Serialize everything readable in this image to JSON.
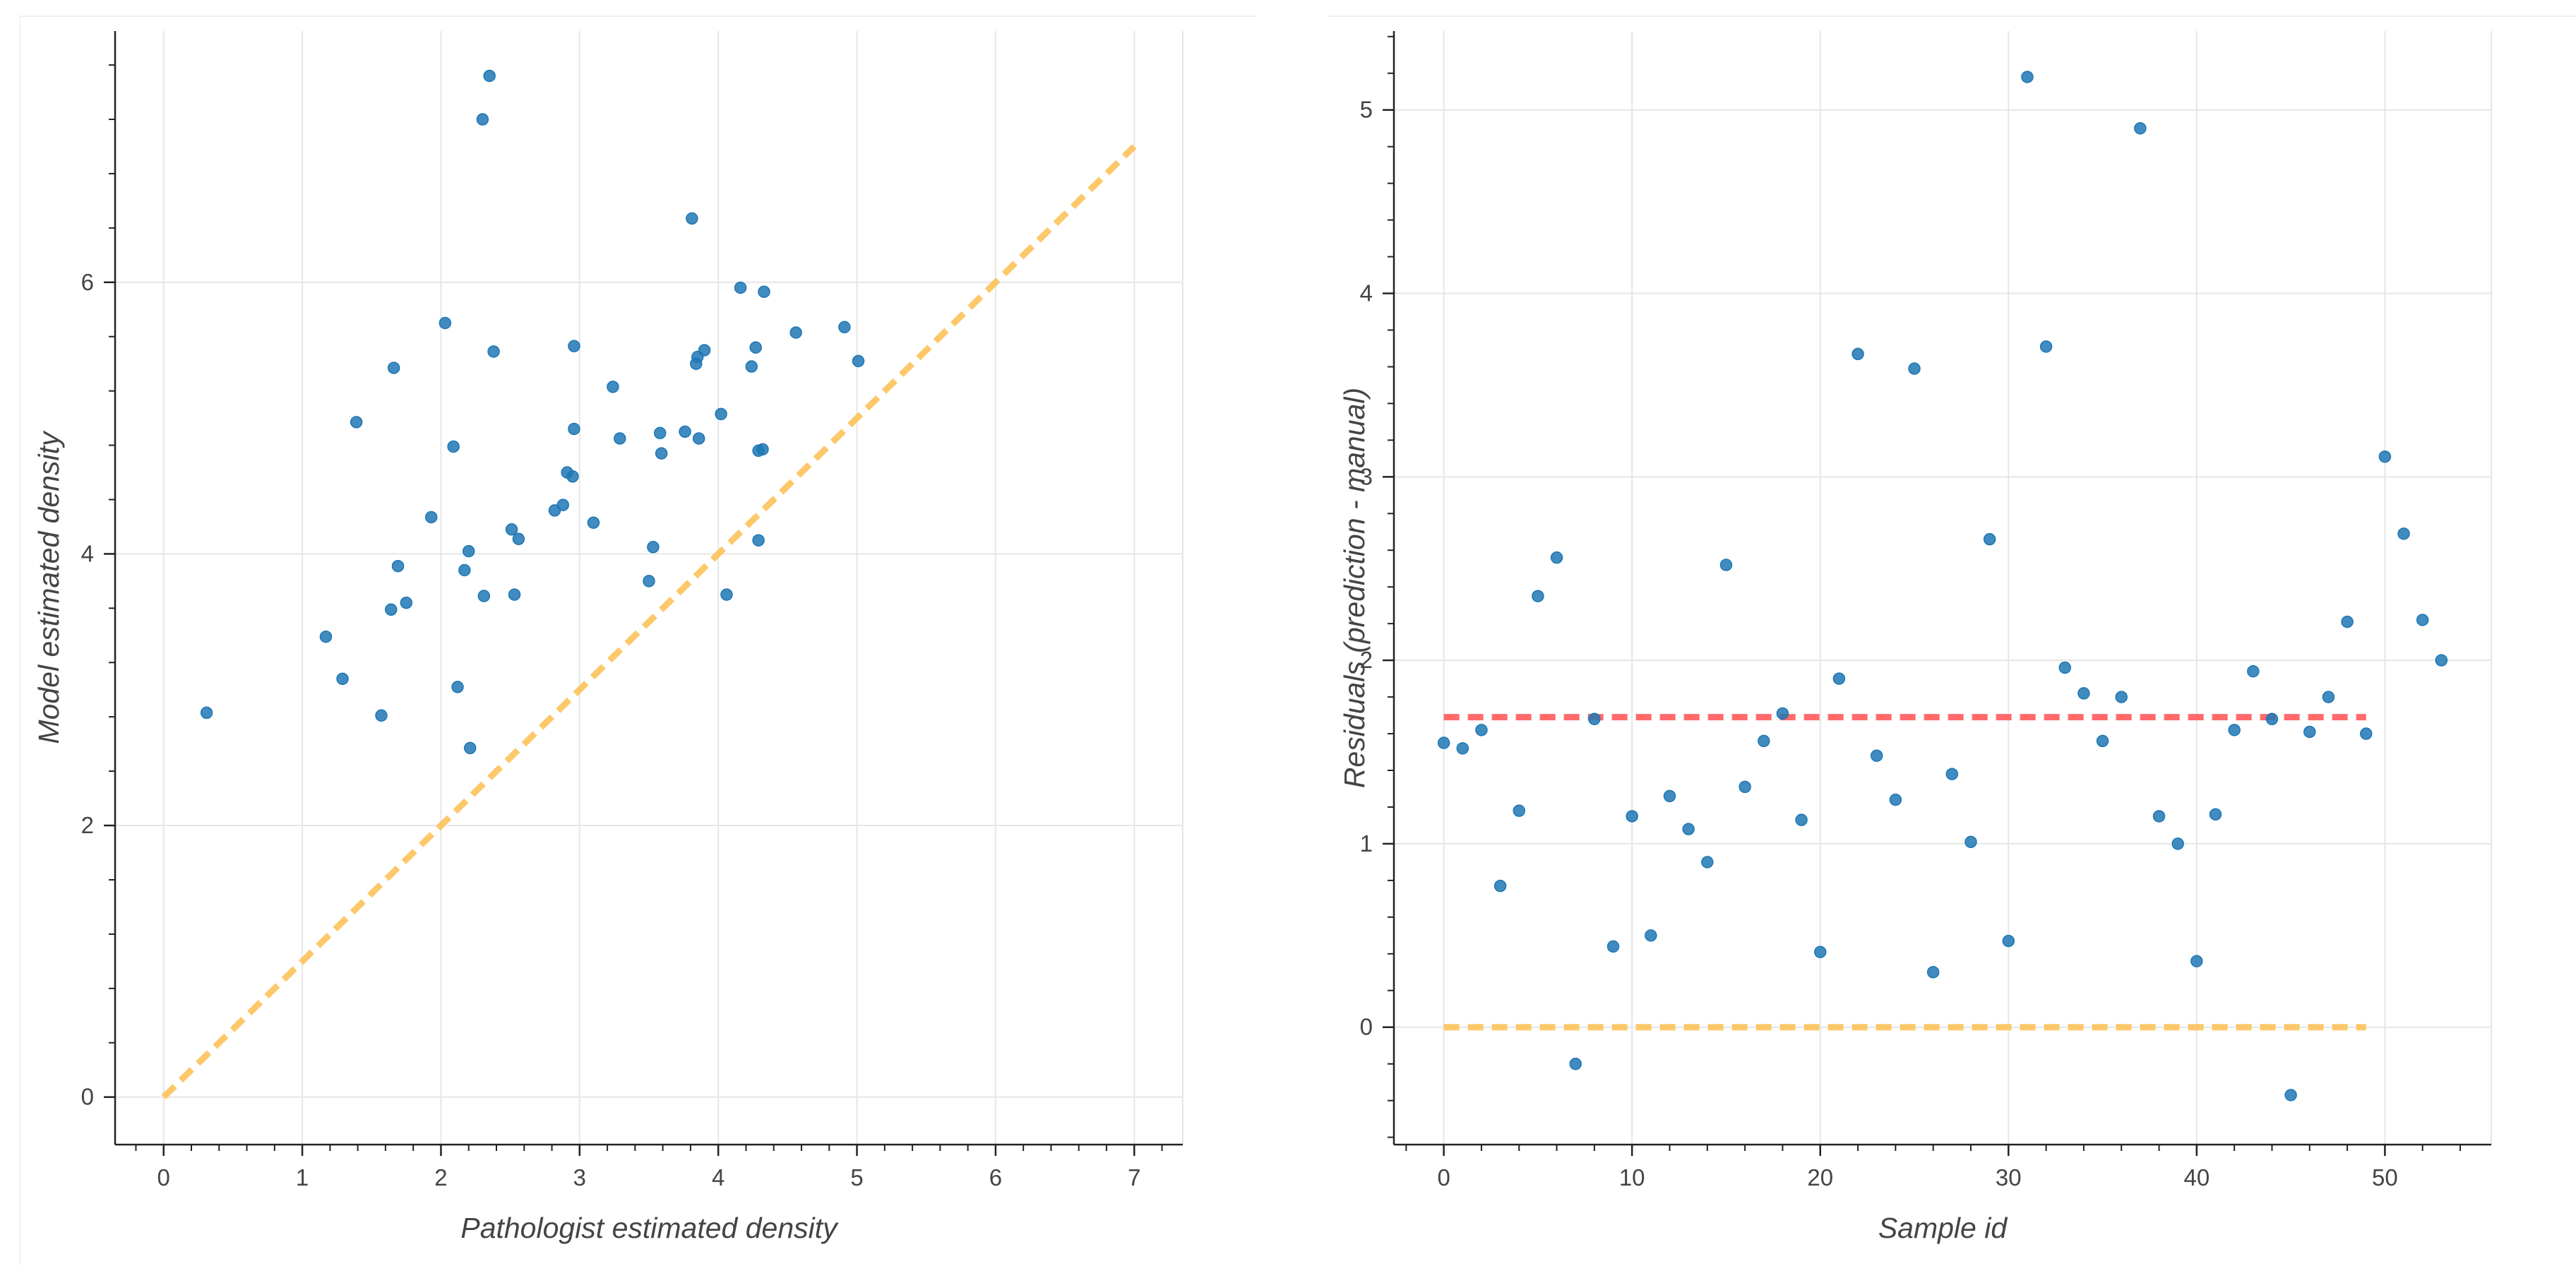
{
  "chart_data": [
    {
      "type": "scatter",
      "title": "",
      "xlabel": "Pathologist estimated density",
      "ylabel": "Model estimated density",
      "xlim": [
        -0.35,
        7.35
      ],
      "ylim": [
        -0.35,
        7.85
      ],
      "x_ticks": [
        0,
        1,
        2,
        3,
        4,
        5,
        6,
        7
      ],
      "y_ticks": [
        0,
        2,
        4,
        6
      ],
      "grid": true,
      "colors": {
        "points": "#1f77b4",
        "reference_line": "#fdc35a",
        "grid": "#e6e6e6",
        "axis": "#222222"
      },
      "reference_line": {
        "name": "y = x",
        "x": [
          0,
          7
        ],
        "y": [
          0,
          7
        ],
        "style": "dashed"
      },
      "points": [
        {
          "x": 0.31,
          "y": 2.83
        },
        {
          "x": 1.17,
          "y": 3.39
        },
        {
          "x": 1.29,
          "y": 3.08
        },
        {
          "x": 1.39,
          "y": 4.97
        },
        {
          "x": 1.57,
          "y": 2.81
        },
        {
          "x": 1.64,
          "y": 3.59
        },
        {
          "x": 1.66,
          "y": 5.37
        },
        {
          "x": 1.69,
          "y": 3.91
        },
        {
          "x": 1.75,
          "y": 3.64
        },
        {
          "x": 1.93,
          "y": 4.27
        },
        {
          "x": 2.03,
          "y": 5.7
        },
        {
          "x": 2.09,
          "y": 4.79
        },
        {
          "x": 2.12,
          "y": 3.02
        },
        {
          "x": 2.17,
          "y": 3.88
        },
        {
          "x": 2.2,
          "y": 4.02
        },
        {
          "x": 2.21,
          "y": 2.57
        },
        {
          "x": 2.3,
          "y": 7.2
        },
        {
          "x": 2.31,
          "y": 3.69
        },
        {
          "x": 2.35,
          "y": 7.52
        },
        {
          "x": 2.38,
          "y": 5.49
        },
        {
          "x": 2.51,
          "y": 4.18
        },
        {
          "x": 2.53,
          "y": 3.7
        },
        {
          "x": 2.56,
          "y": 4.11
        },
        {
          "x": 2.82,
          "y": 4.32
        },
        {
          "x": 2.88,
          "y": 4.36
        },
        {
          "x": 2.91,
          "y": 4.6
        },
        {
          "x": 2.95,
          "y": 4.57
        },
        {
          "x": 2.96,
          "y": 5.53
        },
        {
          "x": 2.96,
          "y": 4.92
        },
        {
          "x": 3.1,
          "y": 4.23
        },
        {
          "x": 3.24,
          "y": 5.23
        },
        {
          "x": 3.29,
          "y": 4.85
        },
        {
          "x": 3.5,
          "y": 3.8
        },
        {
          "x": 3.53,
          "y": 4.05
        },
        {
          "x": 3.58,
          "y": 4.89
        },
        {
          "x": 3.59,
          "y": 4.74
        },
        {
          "x": 3.76,
          "y": 4.9
        },
        {
          "x": 3.81,
          "y": 6.47
        },
        {
          "x": 3.84,
          "y": 5.4
        },
        {
          "x": 3.85,
          "y": 5.45
        },
        {
          "x": 3.86,
          "y": 4.85
        },
        {
          "x": 3.9,
          "y": 5.5
        },
        {
          "x": 4.02,
          "y": 5.03
        },
        {
          "x": 4.06,
          "y": 3.7
        },
        {
          "x": 4.16,
          "y": 5.96
        },
        {
          "x": 4.24,
          "y": 5.38
        },
        {
          "x": 4.27,
          "y": 5.52
        },
        {
          "x": 4.29,
          "y": 4.1
        },
        {
          "x": 4.29,
          "y": 4.76
        },
        {
          "x": 4.32,
          "y": 4.77
        },
        {
          "x": 4.33,
          "y": 5.93
        },
        {
          "x": 4.56,
          "y": 5.63
        },
        {
          "x": 4.91,
          "y": 5.67
        },
        {
          "x": 5.01,
          "y": 5.42
        }
      ]
    },
    {
      "type": "scatter",
      "title": "",
      "xlabel": "Sample id",
      "ylabel": "Residuals (prediction - manual)",
      "xlim": [
        -2.65,
        55.65
      ],
      "ylim": [
        -0.64,
        5.43
      ],
      "x_ticks": [
        0,
        10,
        20,
        30,
        40,
        50
      ],
      "y_ticks": [
        0,
        1,
        2,
        3,
        4,
        5
      ],
      "grid": true,
      "colors": {
        "points": "#1f77b4",
        "zero_line": "#fdc35a",
        "mean_line": "#ff5a5a",
        "grid": "#e6e6e6",
        "axis": "#222222"
      },
      "reference_lines": [
        {
          "name": "zero",
          "x": [
            0,
            49
          ],
          "y": [
            0,
            0
          ],
          "style": "dashed"
        },
        {
          "name": "mean residual",
          "x": [
            0,
            49
          ],
          "y": [
            1.69,
            1.69
          ],
          "style": "dashed"
        }
      ],
      "points": [
        {
          "x": 0,
          "y": 1.55
        },
        {
          "x": 1,
          "y": 1.52
        },
        {
          "x": 2,
          "y": 1.62
        },
        {
          "x": 3,
          "y": 0.77
        },
        {
          "x": 4,
          "y": 1.18
        },
        {
          "x": 5,
          "y": 2.35
        },
        {
          "x": 6,
          "y": 2.56
        },
        {
          "x": 7,
          "y": -0.2
        },
        {
          "x": 8,
          "y": 1.68
        },
        {
          "x": 9,
          "y": 0.44
        },
        {
          "x": 10,
          "y": 1.15
        },
        {
          "x": 11,
          "y": 0.5
        },
        {
          "x": 12,
          "y": 1.26
        },
        {
          "x": 13,
          "y": 1.08
        },
        {
          "x": 14,
          "y": 0.9
        },
        {
          "x": 15,
          "y": 2.52
        },
        {
          "x": 16,
          "y": 1.31
        },
        {
          "x": 17,
          "y": 1.56
        },
        {
          "x": 18,
          "y": 1.71
        },
        {
          "x": 19,
          "y": 1.13
        },
        {
          "x": 20,
          "y": 0.41
        },
        {
          "x": 21,
          "y": 1.9
        },
        {
          "x": 22,
          "y": 3.67
        },
        {
          "x": 23,
          "y": 1.48
        },
        {
          "x": 24,
          "y": 1.24
        },
        {
          "x": 25,
          "y": 3.59
        },
        {
          "x": 26,
          "y": 0.3
        },
        {
          "x": 27,
          "y": 1.38
        },
        {
          "x": 28,
          "y": 1.01
        },
        {
          "x": 29,
          "y": 2.66
        },
        {
          "x": 30,
          "y": 0.47
        },
        {
          "x": 31,
          "y": 5.18
        },
        {
          "x": 32,
          "y": 3.71
        },
        {
          "x": 33,
          "y": 1.96
        },
        {
          "x": 34,
          "y": 1.82
        },
        {
          "x": 35,
          "y": 1.56
        },
        {
          "x": 36,
          "y": 1.8
        },
        {
          "x": 37,
          "y": 4.9
        },
        {
          "x": 38,
          "y": 1.15
        },
        {
          "x": 39,
          "y": 1.0
        },
        {
          "x": 40,
          "y": 0.36
        },
        {
          "x": 41,
          "y": 1.16
        },
        {
          "x": 42,
          "y": 1.62
        },
        {
          "x": 43,
          "y": 1.94
        },
        {
          "x": 44,
          "y": 1.68
        },
        {
          "x": 45,
          "y": -0.37
        },
        {
          "x": 46,
          "y": 1.61
        },
        {
          "x": 47,
          "y": 1.8
        },
        {
          "x": 48,
          "y": 2.21
        },
        {
          "x": 49,
          "y": 1.6
        },
        {
          "x": 50,
          "y": 3.11
        },
        {
          "x": 51,
          "y": 2.69
        },
        {
          "x": 52,
          "y": 2.22
        },
        {
          "x": 53,
          "y": 2.0
        }
      ]
    }
  ]
}
